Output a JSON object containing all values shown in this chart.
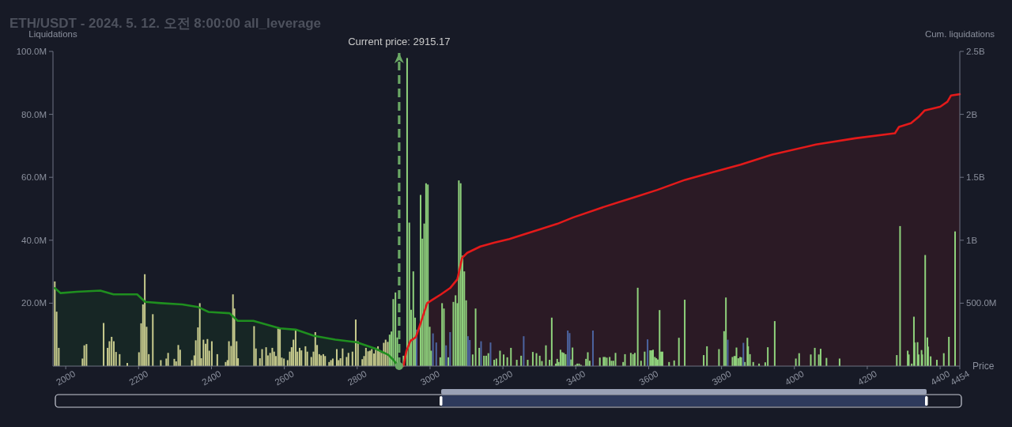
{
  "chart_data": {
    "type": "bar",
    "title": "ETH/USDT - 2024. 5. 12. 오전 8:00:00 all_leverage",
    "xlabel": "Price",
    "ylabel": "Liquidations",
    "y2label": "Cum. liquidations",
    "xlim": [
      1965,
      4454
    ],
    "xticks": [
      2000,
      2200,
      2400,
      2600,
      2800,
      3000,
      3200,
      3400,
      3600,
      3800,
      4000,
      4200,
      4400,
      4454
    ],
    "ylim": [
      0,
      100
    ],
    "yticks": [
      {
        "value": 20,
        "label": "20.0M"
      },
      {
        "value": 40,
        "label": "40.0M"
      },
      {
        "value": 60,
        "label": "60.0M"
      },
      {
        "value": 80,
        "label": "80.0M"
      },
      {
        "value": 100,
        "label": "100.0M"
      }
    ],
    "y2lim": [
      0,
      2500000000
    ],
    "y2ticks": [
      {
        "value": 500000000,
        "label": "500.0M"
      },
      {
        "value": 1000000000,
        "label": "1B"
      },
      {
        "value": 1500000000,
        "label": "1.5B"
      },
      {
        "value": 2000000000,
        "label": "2B"
      },
      {
        "value": 2500000000,
        "label": "2.5B"
      }
    ],
    "ref_lines": [
      {
        "axis": "x",
        "value": 2915.17,
        "label": "Current price: 2915.17",
        "color": "#6aa865",
        "line_style": "dashed"
      }
    ],
    "series": [
      {
        "type": "area",
        "axis": "y2",
        "color": "#1f8f1f",
        "x": [
          1970,
          1986,
          2030,
          2095,
          2131,
          2196,
          2218,
          2262,
          2320,
          2363,
          2392,
          2450,
          2472,
          2515,
          2588,
          2631,
          2682,
          2740,
          2798,
          2849,
          2885,
          2899,
          2910,
          2915.17
        ],
        "values": [
          620000000,
          580000000,
          590000000,
          600000000,
          570000000,
          570000000,
          510000000,
          500000000,
          490000000,
          470000000,
          430000000,
          420000000,
          360000000,
          360000000,
          300000000,
          290000000,
          240000000,
          210000000,
          190000000,
          140000000,
          90000000,
          50000000,
          10000000,
          0
        ]
      },
      {
        "type": "area",
        "axis": "y2",
        "color": "#e31a1a",
        "x": [
          2927,
          2935,
          2946,
          2961,
          2975,
          2992,
          3008,
          3030,
          3055,
          3075,
          3088,
          3102,
          3138,
          3175,
          3218,
          3262,
          3305,
          3349,
          3392,
          3472,
          3559,
          3624,
          3700,
          3776,
          3852,
          3939,
          4059,
          4167,
          4276,
          4287,
          4320,
          4341,
          4357,
          4400,
          4420,
          4430,
          4454
        ],
        "values": [
          0,
          120000000,
          200000000,
          230000000,
          350000000,
          500000000,
          530000000,
          570000000,
          620000000,
          690000000,
          860000000,
          900000000,
          950000000,
          980000000,
          1010000000,
          1050000000,
          1090000000,
          1130000000,
          1180000000,
          1260000000,
          1340000000,
          1400000000,
          1480000000,
          1540000000,
          1600000000,
          1680000000,
          1760000000,
          1810000000,
          1850000000,
          1900000000,
          1930000000,
          1980000000,
          2030000000,
          2060000000,
          2100000000,
          2150000000,
          2160000000
        ]
      },
      {
        "color": "#c9cc8e",
        "x": [
          1970,
          1975,
          1981,
          2046,
          2051,
          2057,
          2104,
          2115,
          2120,
          2126,
          2132,
          2138,
          2148,
          2169,
          2201,
          2207,
          2212,
          2217,
          2222,
          2228,
          2239,
          2261,
          2276,
          2281,
          2298,
          2303,
          2309,
          2314,
          2346,
          2353,
          2357,
          2363,
          2368,
          2372,
          2378,
          2384,
          2389,
          2394,
          2401,
          2416,
          2439,
          2444,
          2448,
          2454,
          2459,
          2463,
          2469,
          2473,
          2517,
          2522,
          2533,
          2539,
          2550,
          2555,
          2561,
          2567,
          2572,
          2577,
          2583,
          2588,
          2593,
          2599,
          2609,
          2615,
          2620,
          2625,
          2631,
          2636,
          2642,
          2647,
          2658,
          2663,
          2674,
          2680,
          2685,
          2690,
          2696,
          2701,
          2707,
          2712,
          2723,
          2728,
          2733,
          2744,
          2749,
          2754,
          2760,
          2771,
          2776,
          2787,
          2796,
          2802,
          2814,
          2819,
          2824,
          2830,
          2835,
          2840,
          2846,
          2851,
          2857,
          2862,
          2867,
          2873,
          2878,
          2884
        ],
        "values": [
          26.9,
          17.3,
          5.8,
          2.4,
          6.6,
          7.0,
          13.7,
          5.8,
          7.9,
          9.3,
          7.9,
          4.5,
          3.8,
          1.0,
          4.4,
          13.6,
          19.6,
          29.2,
          12.5,
          3.8,
          16.5,
          1.9,
          2.4,
          4.2,
          2.3,
          1.5,
          6.7,
          5.2,
          1.9,
          3.4,
          8.2,
          12.3,
          20.0,
          2.5,
          8.4,
          7.1,
          8.6,
          4.9,
          7.9,
          3.8,
          1.3,
          1.9,
          7.9,
          6.4,
          22.8,
          18.3,
          7.9,
          2.5,
          12.7,
          5.6,
          2.5,
          5.4,
          6.0,
          3.4,
          4.2,
          5.8,
          4.6,
          3.2,
          12.0,
          11.8,
          2.7,
          2.4,
          1.9,
          4.6,
          6.0,
          8.4,
          11.5,
          4.6,
          5.8,
          5.0,
          6.3,
          4.6,
          2.9,
          4.6,
          10.8,
          6.7,
          3.8,
          3.4,
          3.8,
          3.2,
          1.3,
          1.9,
          2.4,
          5.4,
          1.9,
          2.5,
          5.6,
          2.9,
          4.2,
          4.6,
          14.8,
          7.9,
          2.2,
          3.2,
          5.8,
          4.7,
          4.9,
          5.4,
          4.0,
          5.8,
          6.3,
          5.0,
          4.2,
          7.4,
          8.4,
          7.7
        ]
      },
      {
        "color": "#8fd27c",
        "x": [
          2889,
          2894,
          2899,
          2905,
          2910,
          2927,
          2937,
          2943,
          2948,
          2954,
          2959,
          2974,
          2979,
          2984,
          2989,
          2994,
          2999,
          3003,
          3028,
          3033,
          3038,
          3050,
          3064,
          3070,
          3075,
          3079,
          3084,
          3089,
          3094,
          3099,
          3117,
          3125,
          3135,
          3148,
          3154,
          3160,
          3176,
          3182,
          3192,
          3202,
          3212,
          3222,
          3238,
          3250,
          3268,
          3282,
          3292,
          3301,
          3307,
          3318,
          3328,
          3334,
          3345,
          3349,
          3353,
          3358,
          3363,
          3367,
          3372,
          3386,
          3391,
          3399,
          3404,
          3409,
          3414,
          3428,
          3433,
          3438,
          3466,
          3476,
          3480,
          3485,
          3493,
          3498,
          3503,
          3509,
          3530,
          3535,
          3551,
          3557,
          3562,
          3570,
          3579,
          3589,
          3604,
          3608,
          3612,
          3617,
          3621,
          3625,
          3630,
          3634,
          3638,
          3656,
          3670,
          3683,
          3699,
          3751,
          3760,
          3793,
          3807,
          3812,
          3830,
          3835,
          3838,
          3841,
          3846,
          3851,
          3854,
          3864,
          3871,
          3873,
          3878,
          3887,
          3903,
          3920,
          3927,
          3946,
          4004,
          4013,
          4045,
          4056,
          4067,
          4072,
          4088,
          4124,
          4281,
          4290,
          4311,
          4314,
          4322,
          4328,
          4330,
          4338,
          4341,
          4349,
          4351,
          4359,
          4365,
          4367,
          4374,
          4391,
          4410,
          4424,
          4441
        ],
        "values": [
          10.0,
          11.0,
          21.3,
          23.4,
          9.1,
          3.3,
          97.9,
          45.6,
          17.9,
          30.1,
          15.4,
          54.4,
          40.5,
          45.3,
          58.1,
          57.7,
          12.5,
          4.9,
          2.8,
          20.0,
          18.3,
          2.8,
          20.4,
          22.5,
          20.0,
          59.0,
          58.1,
          35.1,
          30.1,
          20.9,
          3.7,
          18.3,
          5.8,
          3.3,
          3.3,
          4.1,
          2.0,
          2.4,
          4.9,
          3.7,
          2.8,
          5.8,
          2.0,
          3.3,
          2.0,
          4.5,
          4.1,
          3.3,
          1.6,
          6.6,
          2.0,
          15.4,
          0.8,
          2.3,
          1.3,
          5.2,
          4.4,
          4.2,
          3.8,
          2.1,
          5.9,
          0.4,
          0.8,
          0.8,
          0.4,
          2.3,
          4.4,
          1.7,
          2.7,
          2.9,
          2.9,
          2.7,
          2.9,
          1.7,
          1.7,
          4.2,
          1.3,
          3.8,
          4.2,
          3.8,
          4.2,
          24.9,
          1.7,
          4.6,
          5.0,
          5.0,
          5.2,
          2.9,
          2.5,
          2.1,
          17.8,
          4.6,
          4.6,
          1.3,
          1.8,
          9.0,
          21.1,
          3.5,
          6.3,
          5.4,
          11.1,
          21.8,
          2.9,
          3.2,
          3.2,
          5.9,
          2.5,
          2.9,
          2.8,
          1.3,
          9.0,
          6.3,
          3.8,
          1.3,
          0.8,
          1.2,
          6.0,
          14.3,
          2.4,
          4.1,
          3.7,
          5.8,
          3.7,
          5.5,
          2.6,
          2.4,
          3.5,
          44.5,
          4.9,
          3.7,
          0.8,
          15.7,
          7.5,
          7.6,
          3.7,
          5.1,
          3.7,
          35.3,
          9.1,
          6.2,
          3.1,
          2.0,
          4.1,
          9.3,
          42.8
        ]
      },
      {
        "color": "#4c64a0",
        "x": [
          2963,
          3008,
          3017,
          3044,
          3055,
          3104,
          3109,
          3140,
          3166,
          3257,
          3378,
          3383,
          3447,
          3597,
          3817,
          3860
        ],
        "values": [
          11.6,
          10.4,
          7.5,
          6.6,
          10.8,
          9.5,
          8.3,
          7.9,
          7.5,
          9.5,
          11.3,
          10.5,
          11.3,
          8.5,
          8.4,
          7.4
        ]
      }
    ]
  }
}
